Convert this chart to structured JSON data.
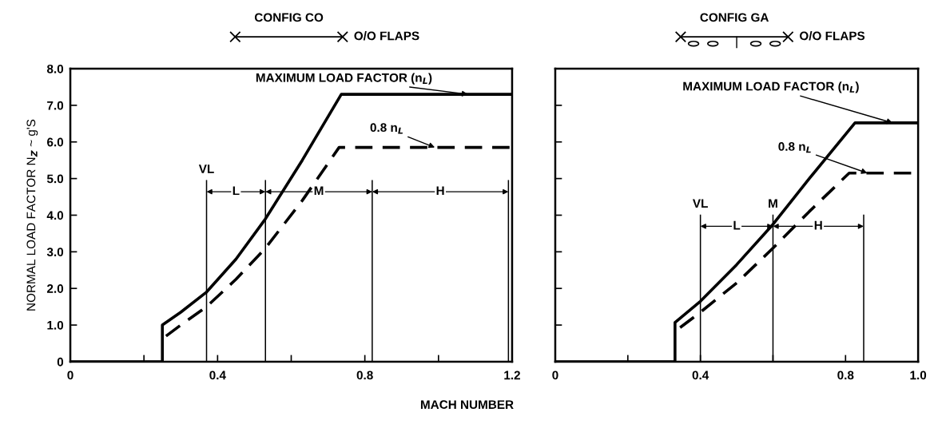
{
  "chart_data": [
    {
      "type": "line",
      "title": "CONFIG CO",
      "subtitle": "O/O FLAPS",
      "xlabel": "MACH NUMBER",
      "ylabel": "NORMAL LOAD FACTOR N$_{Z}$ ~ g'S",
      "series": [
        {
          "color": "#000000",
          "line_style": "solid",
          "x": [
            0,
            0.25,
            0.25,
            0.3,
            0.37,
            0.45,
            0.53,
            0.63,
            0.736,
            1.2
          ],
          "values": [
            0,
            0,
            1.0,
            1.35,
            1.9,
            2.8,
            3.9,
            5.5,
            7.3,
            7.3
          ]
        },
        {
          "color": "#000000",
          "line_style": "dashed",
          "x": [
            0.26,
            0.3,
            0.37,
            0.45,
            0.53,
            0.63,
            0.73,
            1.2
          ],
          "values": [
            0.7,
            1.0,
            1.5,
            2.25,
            3.1,
            4.4,
            5.85,
            5.85
          ]
        }
      ],
      "xlim": [
        0,
        1.2
      ],
      "ylim": [
        0,
        8.0
      ],
      "xticks": [
        0,
        {
          "value": 0.2,
          "label": null
        },
        0.4,
        {
          "value": 0.6,
          "label": null
        },
        0.8,
        {
          "value": 1.0,
          "label": null
        },
        1.2
      ],
      "yticks": [
        0,
        {
          "value": 1,
          "label": "1.0"
        },
        {
          "value": 2,
          "label": "2.0"
        },
        {
          "value": 3,
          "label": "3.0"
        },
        {
          "value": 4,
          "label": "4.0"
        },
        {
          "value": 5,
          "label": "5.0"
        },
        {
          "value": 6,
          "label": "6.0"
        },
        {
          "value": 7,
          "label": "7.0"
        },
        {
          "value": 8,
          "label": "8.0"
        }
      ],
      "ref_lines": [
        {
          "axis": "x",
          "value": 0.37,
          "label": "VL"
        },
        {
          "axis": "x",
          "value": 0.53
        },
        {
          "axis": "x",
          "value": 0.82
        },
        {
          "axis": "x",
          "value": 1.19
        }
      ],
      "annotations": [
        {
          "text": "MAXIMUM LOAD FACTOR (n$_{L}$)",
          "x": 1.08,
          "y": 7.3
        },
        {
          "text": "0.8 n$_{L}$",
          "x": 0.99,
          "y": 5.85
        },
        "L",
        "M",
        "H"
      ],
      "grid": false
    },
    {
      "type": "line",
      "title": "CONFIG GA",
      "subtitle": "O/O FLAPS",
      "series": [
        {
          "color": "#000000",
          "line_style": "solid",
          "x": [
            0,
            0.33,
            0.33,
            0.4,
            0.5,
            0.6,
            0.7,
            0.826,
            1.0
          ],
          "values": [
            0,
            0,
            1.07,
            1.65,
            2.65,
            3.75,
            5.0,
            6.52,
            6.52
          ]
        },
        {
          "color": "#000000",
          "line_style": "dashed",
          "x": [
            0.344,
            0.4,
            0.5,
            0.6,
            0.7,
            0.81,
            1.0
          ],
          "values": [
            0.93,
            1.35,
            2.15,
            3.1,
            4.1,
            5.15,
            5.15
          ]
        }
      ],
      "xlim": [
        0,
        1.0
      ],
      "ylim": [
        0,
        8.0
      ],
      "xticks": [
        0,
        {
          "value": 0.2,
          "label": null
        },
        0.4,
        {
          "value": 0.6,
          "label": null
        },
        {
          "value": 0.8,
          "label": "0.8"
        },
        {
          "value": 1.0,
          "label": "1.0"
        }
      ],
      "yticks": [
        0,
        1,
        2,
        3,
        4,
        5,
        6,
        7,
        8
      ],
      "tick_labels": "x",
      "ref_lines": [
        {
          "axis": "x",
          "value": 0.4,
          "label": "VL"
        },
        {
          "axis": "x",
          "value": 0.6,
          "label": "M"
        },
        {
          "axis": "x",
          "value": 0.85
        }
      ],
      "annotations": [
        {
          "text": "MAXIMUM LOAD FACTOR (n$_{L}$)",
          "x": 0.93,
          "y": 6.52
        },
        {
          "text": "0.8 n$_{L}$",
          "x": 0.86,
          "y": 5.15
        },
        "L",
        "H"
      ],
      "grid": false
    }
  ]
}
